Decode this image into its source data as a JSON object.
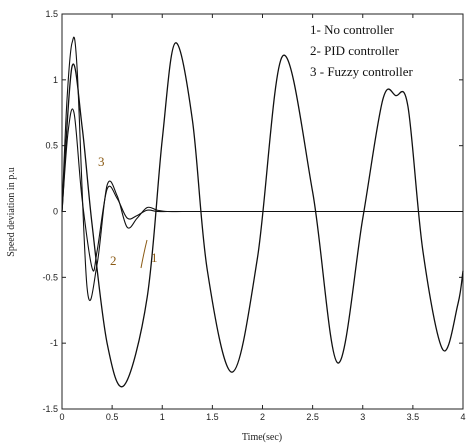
{
  "chart_data": {
    "type": "line",
    "title": "",
    "xlabel": "Time(sec)",
    "ylabel": "Speed deviation in p.u",
    "xlim": [
      0,
      4
    ],
    "ylim": [
      -1.5,
      1.5
    ],
    "xticks": [
      "0",
      "0.5",
      "1",
      "1.5",
      "2",
      "2.5",
      "3",
      "3.5",
      "4"
    ],
    "yticks": [
      "1.5",
      "1",
      "0.5",
      "0",
      "-0.5",
      "-1",
      "-1.5"
    ],
    "grid": false,
    "legend": {
      "position": "top-right",
      "entries": [
        "1- No controller",
        "2- PID controller",
        "3 - Fuzzy controller"
      ]
    },
    "curve_labels": [
      "3",
      "2",
      "1"
    ],
    "series": [
      {
        "x": [
          0,
          0.1,
          0.2,
          0.3,
          0.45,
          0.62,
          0.85,
          1.0,
          1.13,
          1.3,
          1.45,
          1.7,
          1.95,
          2.2,
          2.5,
          2.75,
          3.0,
          3.2,
          3.33,
          3.45,
          3.6,
          3.8,
          3.95,
          4.0
        ],
        "y": [
          0,
          1.1,
          0.65,
          -0.1,
          -1.0,
          -1.32,
          -0.65,
          0.55,
          1.28,
          0.7,
          -0.45,
          -1.22,
          -0.35,
          1.18,
          0.15,
          -1.15,
          -0.05,
          0.85,
          0.88,
          0.8,
          -0.3,
          -1.05,
          -0.7,
          -0.45
        ]
      },
      {
        "x": [
          0,
          0.05,
          0.1,
          0.15,
          0.25,
          0.35,
          0.45,
          0.55,
          0.65,
          0.75,
          0.85,
          0.95,
          1.05,
          1.2,
          1.4,
          4.0
        ],
        "y": [
          0,
          0.85,
          1.28,
          1.1,
          -0.58,
          -0.4,
          0.2,
          0.12,
          -0.12,
          -0.05,
          0.03,
          0.01,
          0.0,
          0.0,
          0.0,
          0.0
        ]
      },
      {
        "x": [
          0,
          0.06,
          0.12,
          0.2,
          0.3,
          0.35,
          0.45,
          0.55,
          0.65,
          0.75,
          0.85,
          0.95,
          1.05,
          1.2,
          4.0
        ],
        "y": [
          0,
          0.6,
          0.75,
          0.1,
          -0.43,
          -0.3,
          0.17,
          0.1,
          -0.05,
          -0.03,
          0.01,
          0.0,
          0.0,
          0.0,
          0.0
        ]
      }
    ]
  }
}
